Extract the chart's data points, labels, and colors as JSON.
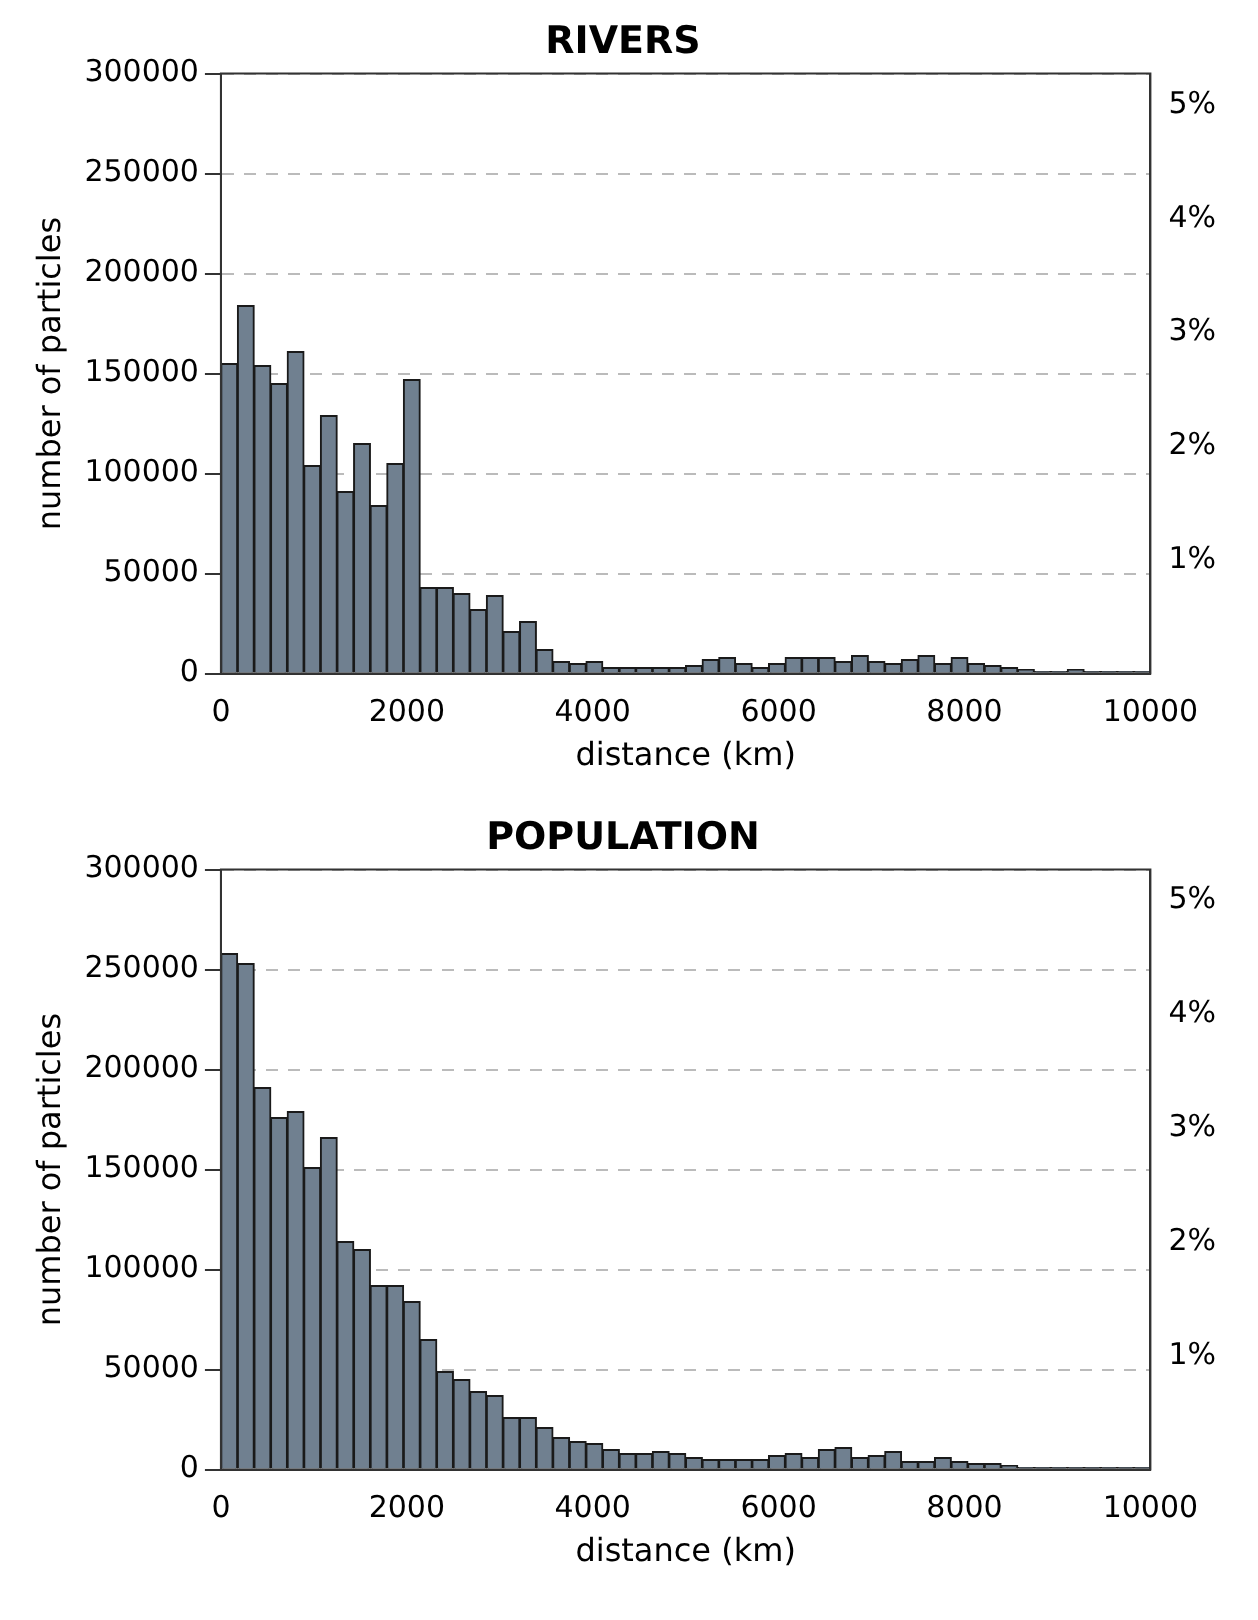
{
  "chart_data": [
    {
      "type": "histogram",
      "title": "RIVERS",
      "xlabel": "distance (km)",
      "ylabel": "number of particles",
      "color": "#708090",
      "bins": [
        0,
        178.6,
        357.1,
        535.7,
        714.3,
        892.9,
        1071.4,
        1250,
        1428.6,
        1607.1,
        1785.7,
        1964.3,
        2142.9,
        2321.4,
        2500,
        2678.6,
        2857.1,
        3035.7,
        3214.3,
        3392.9,
        3571.4,
        3750,
        3928.6,
        4107.1,
        4285.7,
        4464.3,
        4642.9,
        4821.4,
        5000,
        5178.6,
        5357.1,
        5535.7,
        5714.3,
        5892.9,
        6071.4,
        6250,
        6428.6,
        6607.1,
        6785.7,
        6964.3,
        7142.9,
        7321.4,
        7500,
        7678.6,
        7857.1,
        8035.7,
        8214.3,
        8392.9,
        8571.4,
        8750,
        8928.6,
        9107.1,
        9285.7,
        9464.3,
        9642.9,
        9821.4,
        10000
      ],
      "values": [
        155000,
        184000,
        154000,
        145000,
        161000,
        104000,
        129000,
        91000,
        115000,
        84000,
        105000,
        147000,
        43000,
        43000,
        40000,
        32000,
        39000,
        21000,
        26000,
        12000,
        6000,
        5000,
        6000,
        3000,
        3000,
        3000,
        3000,
        3000,
        4000,
        7000,
        8000,
        5000,
        3000,
        5000,
        8000,
        8000,
        8000,
        6000,
        9000,
        6000,
        5000,
        7000,
        9000,
        5000,
        8000,
        5000,
        4000,
        3000,
        2000,
        1000,
        1000,
        2000,
        1000,
        1000,
        1000,
        1000
      ],
      "xlim": [
        0,
        10000
      ],
      "xticks": [
        0,
        2000,
        4000,
        6000,
        8000,
        10000
      ],
      "ylim": [
        0,
        300000
      ],
      "yticks": [
        0,
        50000,
        100000,
        150000,
        200000,
        250000,
        300000
      ],
      "y2lim": [
        0,
        5.28
      ],
      "y2ticks": [
        {
          "value": 1,
          "label": "1%"
        },
        {
          "value": 2,
          "label": "2%"
        },
        {
          "value": 3,
          "label": "3%"
        },
        {
          "value": 4,
          "label": "4%"
        },
        {
          "value": 5,
          "label": "5%"
        }
      ],
      "grid": "y"
    },
    {
      "type": "histogram",
      "title": "POPULATION",
      "xlabel": "distance (km)",
      "ylabel": "number of particles",
      "color": "#708090",
      "bins": [
        0,
        178.6,
        357.1,
        535.7,
        714.3,
        892.9,
        1071.4,
        1250,
        1428.6,
        1607.1,
        1785.7,
        1964.3,
        2142.9,
        2321.4,
        2500,
        2678.6,
        2857.1,
        3035.7,
        3214.3,
        3392.9,
        3571.4,
        3750,
        3928.6,
        4107.1,
        4285.7,
        4464.3,
        4642.9,
        4821.4,
        5000,
        5178.6,
        5357.1,
        5535.7,
        5714.3,
        5892.9,
        6071.4,
        6250,
        6428.6,
        6607.1,
        6785.7,
        6964.3,
        7142.9,
        7321.4,
        7500,
        7678.6,
        7857.1,
        8035.7,
        8214.3,
        8392.9,
        8571.4,
        8750,
        8928.6,
        9107.1,
        9285.7,
        9464.3,
        9642.9,
        9821.4,
        10000
      ],
      "values": [
        258000,
        253000,
        191000,
        176000,
        179000,
        151000,
        166000,
        114000,
        110000,
        92000,
        92000,
        84000,
        65000,
        49000,
        45000,
        39000,
        37000,
        26000,
        26000,
        21000,
        16000,
        14000,
        13000,
        10000,
        8000,
        8000,
        9000,
        8000,
        6000,
        5000,
        5000,
        5000,
        5000,
        7000,
        8000,
        6000,
        10000,
        11000,
        6000,
        7000,
        9000,
        4000,
        4000,
        6000,
        4000,
        3000,
        3000,
        2000,
        1000,
        1000,
        1000,
        1000,
        1000,
        1000,
        1000,
        1000
      ],
      "xlim": [
        0,
        10000
      ],
      "xticks": [
        0,
        2000,
        4000,
        6000,
        8000,
        10000
      ],
      "ylim": [
        0,
        300000
      ],
      "yticks": [
        0,
        50000,
        100000,
        150000,
        200000,
        250000,
        300000
      ],
      "y2lim": [
        0,
        5.27
      ],
      "y2ticks": [
        {
          "value": 1,
          "label": "1%"
        },
        {
          "value": 2,
          "label": "2%"
        },
        {
          "value": 3,
          "label": "3%"
        },
        {
          "value": 4,
          "label": "4%"
        },
        {
          "value": 5,
          "label": "5%"
        }
      ],
      "grid": "y"
    }
  ]
}
